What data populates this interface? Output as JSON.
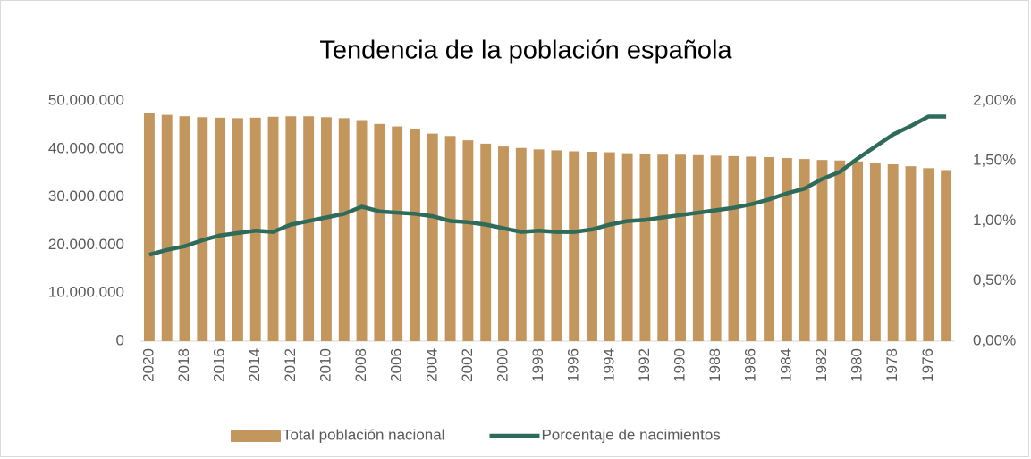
{
  "chart_data": {
    "type": "bar",
    "title": "Tendencia de la población española",
    "categories": [
      "2020",
      null,
      "2018",
      null,
      "2016",
      null,
      "2014",
      null,
      "2012",
      null,
      "2010",
      null,
      "2008",
      null,
      "2006",
      null,
      "2004",
      null,
      "2002",
      null,
      "2000",
      null,
      "1998",
      null,
      "1996",
      null,
      "1994",
      null,
      "1992",
      null,
      "1990",
      null,
      "1988",
      null,
      "1986",
      null,
      "1984",
      null,
      "1982",
      null,
      "1980",
      null,
      "1978",
      null,
      "1976",
      null
    ],
    "series": [
      {
        "name": "Total población nacional",
        "type": "bar",
        "color": "#c3965e",
        "values": [
          47450000,
          47100000,
          46800000,
          46600000,
          46500000,
          46400000,
          46500000,
          46700000,
          46800000,
          46800000,
          46600000,
          46400000,
          46000000,
          45200000,
          44700000,
          44100000,
          43200000,
          42700000,
          41800000,
          41100000,
          40500000,
          40200000,
          39900000,
          39700000,
          39500000,
          39400000,
          39300000,
          39100000,
          38900000,
          38800000,
          38800000,
          38700000,
          38600000,
          38500000,
          38400000,
          38300000,
          38100000,
          37900000,
          37700000,
          37600000,
          37400000,
          37100000,
          36800000,
          36400000,
          36000000,
          35600000
        ]
      },
      {
        "name": "Porcentaje de nacimientos",
        "type": "line",
        "axis": "y2",
        "color": "#2e6b5a",
        "values": [
          0.72,
          0.76,
          0.79,
          0.84,
          0.88,
          0.9,
          0.92,
          0.91,
          0.97,
          1.0,
          1.03,
          1.06,
          1.12,
          1.08,
          1.07,
          1.06,
          1.04,
          1.0,
          0.99,
          0.97,
          0.94,
          0.91,
          0.92,
          0.91,
          0.91,
          0.93,
          0.97,
          1.0,
          1.01,
          1.03,
          1.05,
          1.07,
          1.09,
          1.11,
          1.14,
          1.18,
          1.23,
          1.27,
          1.35,
          1.41,
          1.52,
          1.62,
          1.72,
          1.79,
          1.87,
          1.87
        ]
      }
    ],
    "ylim": [
      0,
      50000000
    ],
    "yticks": [
      0,
      {
        "value": 10000000,
        "label": "10.000.000"
      },
      {
        "value": 20000000,
        "label": "20.000.000"
      },
      {
        "value": 30000000,
        "label": "30.000.000"
      },
      {
        "value": 40000000,
        "label": "40.000.000"
      },
      {
        "value": 50000000,
        "label": "50.000.000"
      }
    ],
    "y2lim": [
      0,
      2
    ],
    "y2ticks": [
      {
        "value": 0,
        "label": "0,00%"
      },
      {
        "value": 0.5,
        "label": "0,50%"
      },
      {
        "value": 1,
        "label": "1,00%"
      },
      {
        "value": 1.5,
        "label": "1,50%"
      },
      {
        "value": 2,
        "label": "2,00%"
      }
    ],
    "legend": "bottom"
  }
}
